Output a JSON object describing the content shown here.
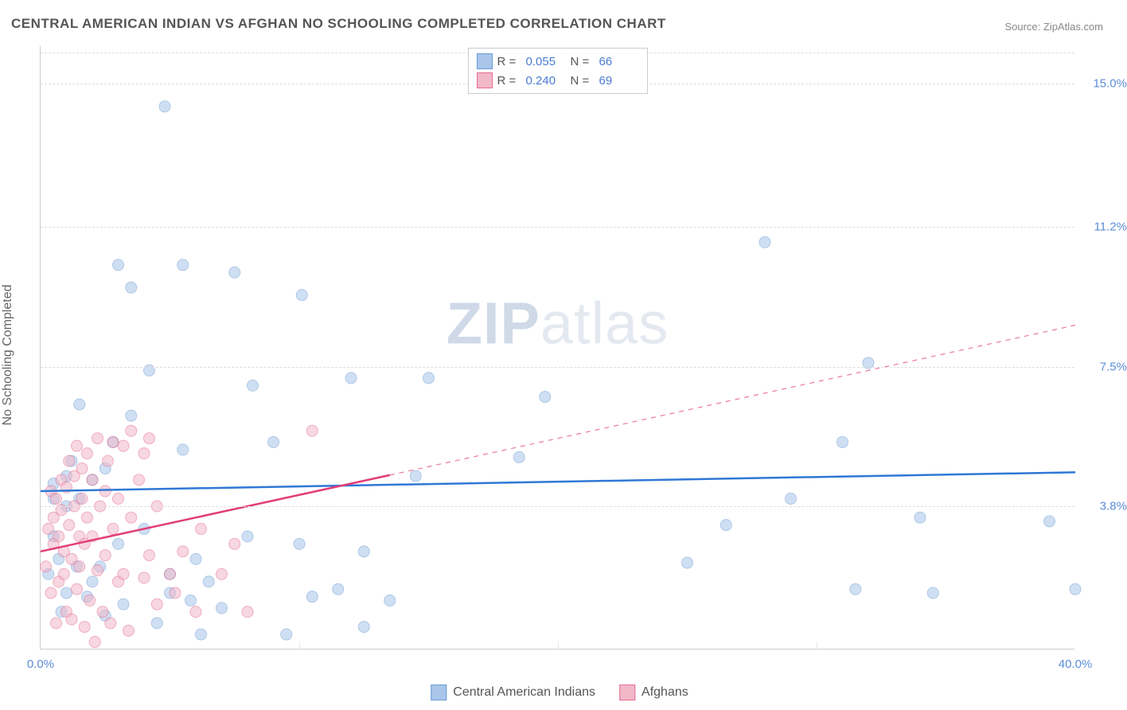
{
  "title": "CENTRAL AMERICAN INDIAN VS AFGHAN NO SCHOOLING COMPLETED CORRELATION CHART",
  "source_label": "Source: ZipAtlas.com",
  "ylabel": "No Schooling Completed",
  "watermark": {
    "part1": "ZIP",
    "part2": "atlas"
  },
  "chart": {
    "type": "scatter",
    "xlim": [
      0,
      40
    ],
    "ylim": [
      0,
      16
    ],
    "x_ticks": [
      0,
      40
    ],
    "x_tick_labels": [
      "0.0%",
      "40.0%"
    ],
    "x_minor_ticks": [
      10,
      20,
      30
    ],
    "y_ticks": [
      3.8,
      7.5,
      11.2,
      15.0
    ],
    "y_tick_labels": [
      "3.8%",
      "7.5%",
      "11.2%",
      "15.0%"
    ],
    "background_color": "#ffffff",
    "grid_color": "#dddddd",
    "axis_color": "#cccccc",
    "value_color": "#5b8dd6",
    "marker_radius": 7,
    "marker_opacity": 0.55,
    "series": [
      {
        "name": "Central American Indians",
        "short": "cai",
        "fill": "#a9c6ea",
        "stroke": "#6b9bd2",
        "line_color": "#2f78d6",
        "line_width": 2.5,
        "r_label": "R =",
        "r_value": "0.055",
        "n_label": "N =",
        "n_value": "66",
        "trend": {
          "x1": 0,
          "y1": 4.2,
          "x2": 40,
          "y2": 4.7,
          "solid_until_x": 40
        },
        "points": [
          [
            0.3,
            2.0
          ],
          [
            0.5,
            3.0
          ],
          [
            0.5,
            4.0
          ],
          [
            0.5,
            4.4
          ],
          [
            0.7,
            2.4
          ],
          [
            0.8,
            1.0
          ],
          [
            1.0,
            1.5
          ],
          [
            1.0,
            3.8
          ],
          [
            1.0,
            4.6
          ],
          [
            1.2,
            5.0
          ],
          [
            1.4,
            2.2
          ],
          [
            1.5,
            4.0
          ],
          [
            1.5,
            6.5
          ],
          [
            1.8,
            1.4
          ],
          [
            2.0,
            1.8
          ],
          [
            2.0,
            4.5
          ],
          [
            2.3,
            2.2
          ],
          [
            2.5,
            0.9
          ],
          [
            2.5,
            4.8
          ],
          [
            2.8,
            5.5
          ],
          [
            3.0,
            2.8
          ],
          [
            3.0,
            10.2
          ],
          [
            3.2,
            1.2
          ],
          [
            3.5,
            9.6
          ],
          [
            3.5,
            6.2
          ],
          [
            4.0,
            3.2
          ],
          [
            4.2,
            7.4
          ],
          [
            4.5,
            0.7
          ],
          [
            4.8,
            14.4
          ],
          [
            5.0,
            1.5
          ],
          [
            5.0,
            2.0
          ],
          [
            5.5,
            10.2
          ],
          [
            5.5,
            5.3
          ],
          [
            5.8,
            1.3
          ],
          [
            6.0,
            2.4
          ],
          [
            6.2,
            0.4
          ],
          [
            6.5,
            1.8
          ],
          [
            7.0,
            1.1
          ],
          [
            7.5,
            10.0
          ],
          [
            8.0,
            3.0
          ],
          [
            8.2,
            7.0
          ],
          [
            9.0,
            5.5
          ],
          [
            9.5,
            0.4
          ],
          [
            10.0,
            2.8
          ],
          [
            10.1,
            9.4
          ],
          [
            10.5,
            1.4
          ],
          [
            11.5,
            1.6
          ],
          [
            12.0,
            7.2
          ],
          [
            12.5,
            2.6
          ],
          [
            12.5,
            0.6
          ],
          [
            13.5,
            1.3
          ],
          [
            14.5,
            4.6
          ],
          [
            15.0,
            7.2
          ],
          [
            18.5,
            5.1
          ],
          [
            19.5,
            6.7
          ],
          [
            25.0,
            2.3
          ],
          [
            26.5,
            3.3
          ],
          [
            28.0,
            10.8
          ],
          [
            29.0,
            4.0
          ],
          [
            31.0,
            5.5
          ],
          [
            31.5,
            1.6
          ],
          [
            32.0,
            7.6
          ],
          [
            34.0,
            3.5
          ],
          [
            34.5,
            1.5
          ],
          [
            39.0,
            3.4
          ],
          [
            40.0,
            1.6
          ]
        ]
      },
      {
        "name": "Afghans",
        "short": "afg",
        "fill": "#f1b8c9",
        "stroke": "#e46a8e",
        "line_color": "#e23d78",
        "line_width": 2.5,
        "r_label": "R =",
        "r_value": "0.240",
        "n_label": "N =",
        "n_value": "69",
        "trend": {
          "x1": 0,
          "y1": 2.6,
          "x2": 40,
          "y2": 8.6,
          "solid_until_x": 13.5
        },
        "points": [
          [
            0.2,
            2.2
          ],
          [
            0.3,
            3.2
          ],
          [
            0.4,
            1.5
          ],
          [
            0.4,
            4.2
          ],
          [
            0.5,
            2.8
          ],
          [
            0.5,
            3.5
          ],
          [
            0.6,
            0.7
          ],
          [
            0.6,
            4.0
          ],
          [
            0.7,
            1.8
          ],
          [
            0.7,
            3.0
          ],
          [
            0.8,
            3.7
          ],
          [
            0.8,
            4.5
          ],
          [
            0.9,
            2.0
          ],
          [
            0.9,
            2.6
          ],
          [
            1.0,
            1.0
          ],
          [
            1.0,
            4.3
          ],
          [
            1.1,
            3.3
          ],
          [
            1.1,
            5.0
          ],
          [
            1.2,
            0.8
          ],
          [
            1.2,
            2.4
          ],
          [
            1.3,
            3.8
          ],
          [
            1.3,
            4.6
          ],
          [
            1.4,
            1.6
          ],
          [
            1.4,
            5.4
          ],
          [
            1.5,
            2.2
          ],
          [
            1.5,
            3.0
          ],
          [
            1.6,
            4.0
          ],
          [
            1.6,
            4.8
          ],
          [
            1.7,
            0.6
          ],
          [
            1.7,
            2.8
          ],
          [
            1.8,
            3.5
          ],
          [
            1.8,
            5.2
          ],
          [
            1.9,
            1.3
          ],
          [
            2.0,
            4.5
          ],
          [
            2.0,
            3.0
          ],
          [
            2.1,
            0.2
          ],
          [
            2.2,
            2.1
          ],
          [
            2.2,
            5.6
          ],
          [
            2.3,
            3.8
          ],
          [
            2.4,
            1.0
          ],
          [
            2.5,
            4.2
          ],
          [
            2.5,
            2.5
          ],
          [
            2.6,
            5.0
          ],
          [
            2.7,
            0.7
          ],
          [
            2.8,
            3.2
          ],
          [
            2.8,
            5.5
          ],
          [
            3.0,
            1.8
          ],
          [
            3.0,
            4.0
          ],
          [
            3.2,
            2.0
          ],
          [
            3.2,
            5.4
          ],
          [
            3.4,
            0.5
          ],
          [
            3.5,
            3.5
          ],
          [
            3.5,
            5.8
          ],
          [
            3.8,
            4.5
          ],
          [
            4.0,
            1.9
          ],
          [
            4.0,
            5.2
          ],
          [
            4.2,
            2.5
          ],
          [
            4.2,
            5.6
          ],
          [
            4.5,
            1.2
          ],
          [
            4.5,
            3.8
          ],
          [
            5.0,
            2.0
          ],
          [
            5.2,
            1.5
          ],
          [
            5.5,
            2.6
          ],
          [
            6.0,
            1.0
          ],
          [
            6.2,
            3.2
          ],
          [
            7.0,
            2.0
          ],
          [
            7.5,
            2.8
          ],
          [
            8.0,
            1.0
          ],
          [
            10.5,
            5.8
          ]
        ]
      }
    ]
  },
  "legend_bottom": [
    {
      "key": "cai",
      "label": "Central American Indians"
    },
    {
      "key": "afg",
      "label": "Afghans"
    }
  ]
}
